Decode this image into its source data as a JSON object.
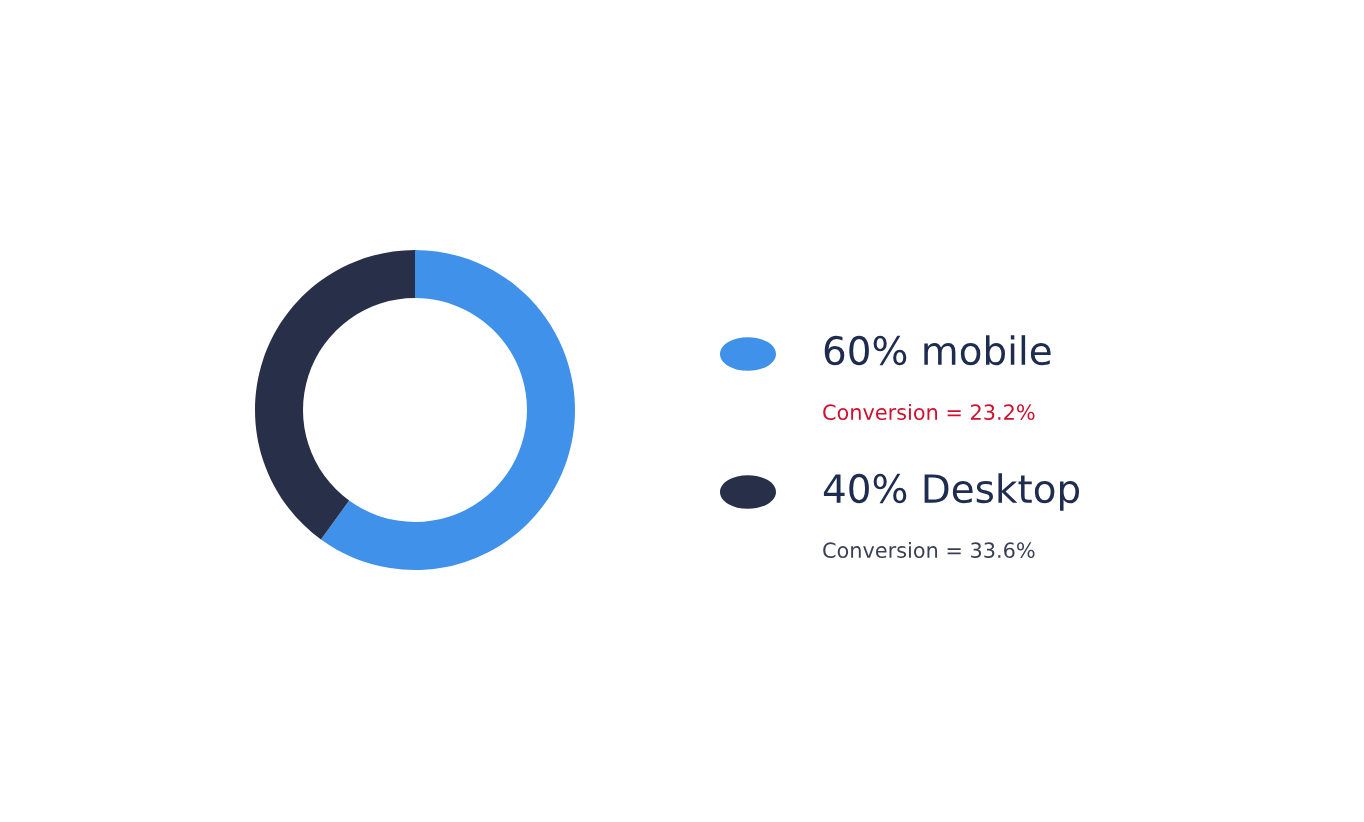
{
  "chart_data": {
    "type": "donut",
    "categories": [
      "mobile",
      "Desktop"
    ],
    "values": [
      60,
      40
    ],
    "value_labels": [
      "60%",
      "40%"
    ],
    "colors": [
      "#4091e9",
      "#283049"
    ],
    "legend": "right",
    "annotations": [
      "Conversion = 23.2%",
      "Conversion = 33.6%"
    ]
  }
}
